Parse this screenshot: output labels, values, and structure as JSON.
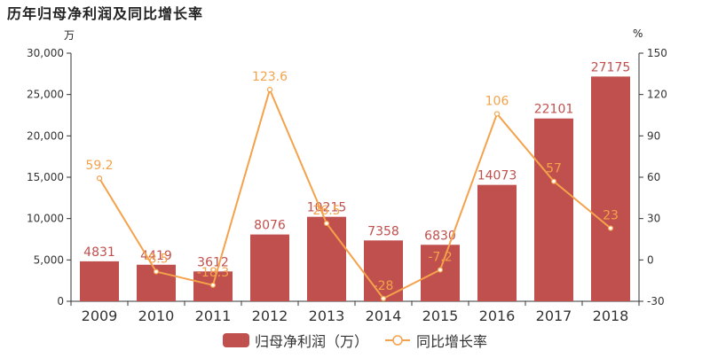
{
  "header": {
    "title": "历年归母净利润及同比增长率",
    "left_unit": "万",
    "right_unit": "%"
  },
  "legend": {
    "bar_label": "归母净利润（万）",
    "line_label": "同比增长率"
  },
  "colors": {
    "bar": "#c0504d",
    "line": "#f4a24b",
    "axis": "#333333",
    "bar_label": "#c0504d",
    "line_label": "#f4a24b"
  },
  "chart_data": {
    "type": "bar",
    "title": "历年归母净利润及同比增长率",
    "categories": [
      "2009",
      "2010",
      "2011",
      "2012",
      "2013",
      "2014",
      "2015",
      "2016",
      "2017",
      "2018"
    ],
    "series": [
      {
        "name": "归母净利润（万）",
        "type": "bar",
        "axis": "left",
        "values": [
          4831,
          4419,
          3612,
          8076,
          10215,
          7358,
          6830,
          14073,
          22101,
          27175
        ],
        "labels": [
          "4831",
          "4419",
          "3612",
          "8076",
          "10215",
          "7358",
          "6830",
          "14073",
          "22101",
          "27175"
        ]
      },
      {
        "name": "同比增长率",
        "type": "line",
        "axis": "right",
        "values": [
          59.2,
          -8.5,
          -18.3,
          123.6,
          26.5,
          -28,
          -7.2,
          106,
          57,
          23
        ],
        "labels": [
          "59.2",
          "-8.5",
          "-18.3",
          "123.6",
          "26.5",
          "-28",
          "-7.2",
          "106",
          "57",
          "23"
        ]
      }
    ],
    "y_left": {
      "unit": "万",
      "min": 0,
      "max": 30000,
      "ticks": [
        0,
        5000,
        10000,
        15000,
        20000,
        25000,
        30000
      ],
      "tick_labels": [
        "0",
        "5,000",
        "10,000",
        "15,000",
        "20,000",
        "25,000",
        "30,000"
      ]
    },
    "y_right": {
      "unit": "%",
      "min": -30,
      "max": 150,
      "ticks": [
        -30,
        0,
        30,
        60,
        90,
        120,
        150
      ],
      "tick_labels": [
        "-30",
        "0",
        "30",
        "60",
        "90",
        "120",
        "150"
      ]
    },
    "grid": false,
    "legend_position": "bottom-center"
  }
}
